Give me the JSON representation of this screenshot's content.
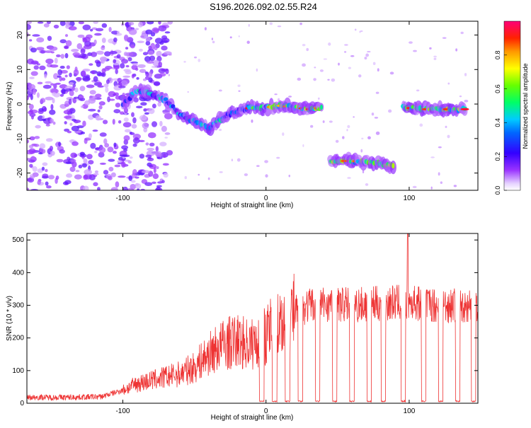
{
  "figure_title": "S196.2026.092.02.55.R24",
  "chart_data": [
    {
      "type": "heatmap",
      "title": "S196.2026.092.02.55.R24",
      "xlabel": "Height of straight line (km)",
      "ylabel": "Frequency (Hz)",
      "xlim": [
        -167,
        148
      ],
      "ylim": [
        -25,
        24
      ],
      "xticks": [
        -100,
        0,
        100
      ],
      "yticks": [
        -20,
        -10,
        0,
        10,
        20
      ],
      "colorbar": {
        "label": "Normalized spectral amplitude",
        "range": [
          0,
          1
        ],
        "ticks": [
          0.0,
          0.2,
          0.4,
          0.6,
          0.8
        ],
        "tick_labels": [
          "0.0",
          "0.2",
          "0.4",
          "0.6",
          "0.8"
        ],
        "colormap": "rainbow-purple-to-magenta"
      },
      "ridge": [
        {
          "x": -100,
          "y": 0
        },
        {
          "x": -90,
          "y": 4
        },
        {
          "x": -80,
          "y": 3
        },
        {
          "x": -70,
          "y": 1
        },
        {
          "x": -60,
          "y": -3
        },
        {
          "x": -50,
          "y": -5
        },
        {
          "x": -40,
          "y": -7
        },
        {
          "x": -30,
          "y": -4
        },
        {
          "x": -20,
          "y": -2
        },
        {
          "x": -10,
          "y": -1
        },
        {
          "x": 0,
          "y": -1
        },
        {
          "x": 10,
          "y": -0.5
        },
        {
          "x": 20,
          "y": -1
        },
        {
          "x": 30,
          "y": -1.5
        },
        {
          "x": 40,
          "y": -1
        },
        {
          "x": 45,
          "y": -16.5
        },
        {
          "x": 60,
          "y": -16.5
        },
        {
          "x": 75,
          "y": -17
        },
        {
          "x": 90,
          "y": -18
        },
        {
          "x": 96,
          "y": -1
        },
        {
          "x": 110,
          "y": -1.5
        },
        {
          "x": 125,
          "y": -1.5
        },
        {
          "x": 140,
          "y": -1.5
        }
      ]
    },
    {
      "type": "line",
      "title": "",
      "xlabel": "Height of straight line (km)",
      "ylabel": "SNR (10 * v/v)",
      "xlim": [
        -167,
        148
      ],
      "ylim": [
        0,
        520
      ],
      "xticks": [
        -100,
        0,
        100
      ],
      "yticks": [
        0,
        100,
        200,
        300,
        400,
        500
      ],
      "color": "#ee3333",
      "envelope": [
        {
          "x": -167,
          "y": 18
        },
        {
          "x": -140,
          "y": 18
        },
        {
          "x": -115,
          "y": 20
        },
        {
          "x": -100,
          "y": 40
        },
        {
          "x": -90,
          "y": 60
        },
        {
          "x": -75,
          "y": 75
        },
        {
          "x": -60,
          "y": 90
        },
        {
          "x": -50,
          "y": 110
        },
        {
          "x": -40,
          "y": 150
        },
        {
          "x": -30,
          "y": 180
        },
        {
          "x": -20,
          "y": 190
        },
        {
          "x": -10,
          "y": 180
        },
        {
          "x": 0,
          "y": 210
        },
        {
          "x": 10,
          "y": 250
        },
        {
          "x": 20,
          "y": 280
        },
        {
          "x": 30,
          "y": 300
        },
        {
          "x": 40,
          "y": 305
        },
        {
          "x": 60,
          "y": 300
        },
        {
          "x": 80,
          "y": 305
        },
        {
          "x": 100,
          "y": 310
        },
        {
          "x": 120,
          "y": 300
        },
        {
          "x": 140,
          "y": 300
        },
        {
          "x": 148,
          "y": 300
        }
      ],
      "dropouts_x": [
        -3,
        6,
        15,
        24,
        36,
        48,
        60,
        72,
        82,
        96,
        110,
        122,
        134,
        145
      ],
      "peak": {
        "x": 99,
        "y": 520
      }
    }
  ]
}
